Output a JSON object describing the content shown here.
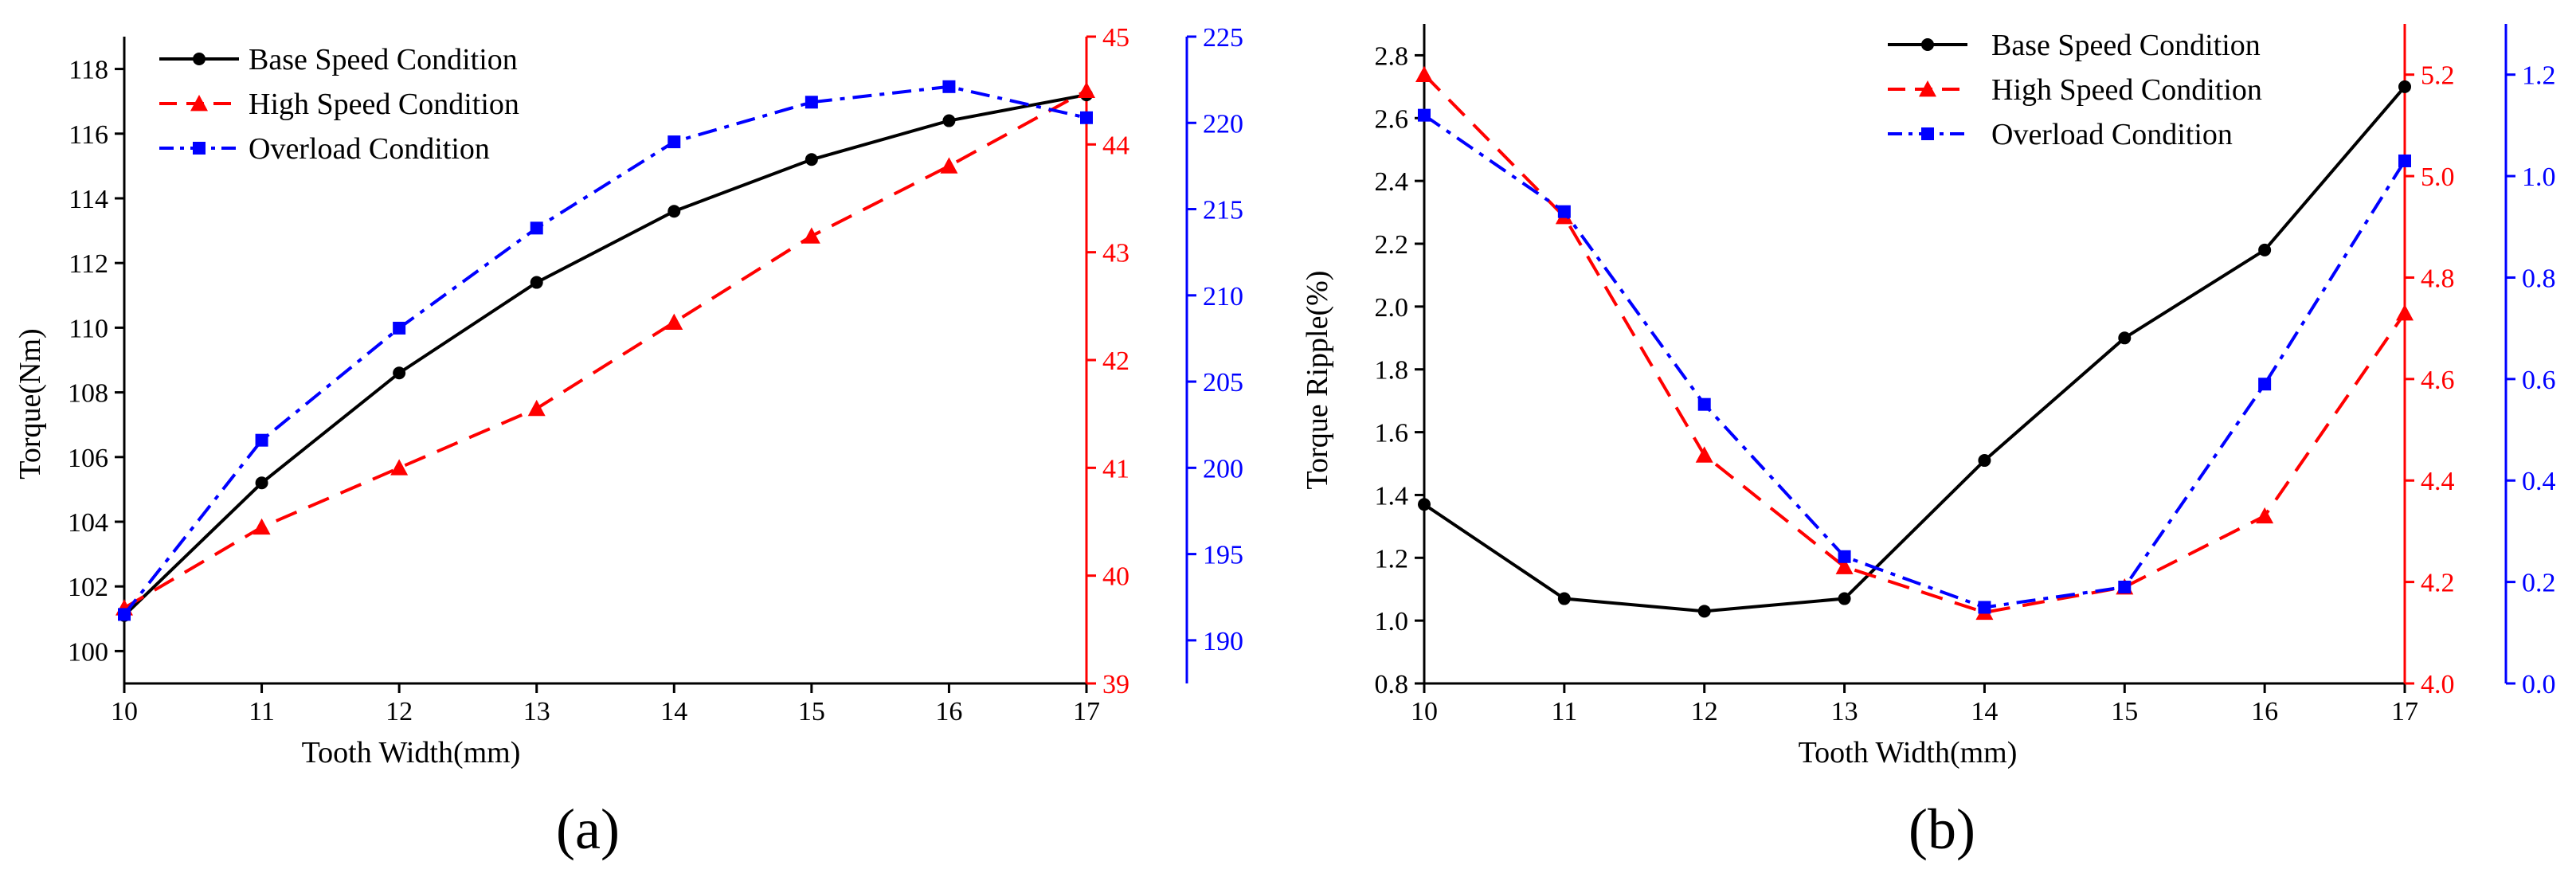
{
  "chart_data": [
    {
      "type": "line",
      "panel_label": "(a)",
      "title": "",
      "xlabel": "Tooth Width(mm)",
      "ylabel": "Torque(Nm)",
      "x": [
        10,
        11,
        12,
        13,
        14,
        15,
        16,
        17
      ],
      "xlim": [
        10,
        17
      ],
      "x_ticks": [
        "10",
        "11",
        "12",
        "13",
        "14",
        "15",
        "16",
        "17"
      ],
      "axes": [
        {
          "id": "left",
          "side": "left",
          "color": "#000000",
          "ylim": [
            99,
            119
          ],
          "ticks": [
            100,
            102,
            104,
            106,
            108,
            110,
            112,
            114,
            116,
            118
          ],
          "tick_labels": [
            "100",
            "102",
            "104",
            "106",
            "108",
            "110",
            "112",
            "114",
            "116",
            "118"
          ]
        },
        {
          "id": "right1",
          "side": "right",
          "color": "#ff0000",
          "ylim": [
            39,
            45
          ],
          "ticks": [
            39,
            40,
            41,
            42,
            43,
            44,
            45
          ],
          "tick_labels": [
            "39",
            "40",
            "41",
            "42",
            "43",
            "44",
            "45"
          ]
        },
        {
          "id": "right2",
          "side": "right",
          "color": "#0000ff",
          "ylim": [
            187.5,
            225
          ],
          "ticks": [
            190,
            195,
            200,
            205,
            210,
            215,
            220,
            225
          ],
          "tick_labels": [
            "190",
            "195",
            "200",
            "205",
            "210",
            "215",
            "220",
            "225"
          ]
        }
      ],
      "series": [
        {
          "name": "Base Speed Condition",
          "axis": "left",
          "color": "#000000",
          "dash": "solid",
          "marker": "circle",
          "values": [
            101.1,
            105.2,
            108.6,
            111.4,
            113.6,
            115.2,
            116.4,
            117.2
          ]
        },
        {
          "name": "High Speed Condition",
          "axis": "right1",
          "color": "#ff0000",
          "dash": "dash",
          "marker": "triangle",
          "values": [
            39.7,
            40.45,
            41.0,
            41.55,
            42.35,
            43.15,
            43.8,
            44.5
          ]
        },
        {
          "name": "Overload Condition",
          "axis": "right2",
          "color": "#0000ff",
          "dash": "dashdot",
          "marker": "square",
          "values": [
            191.5,
            201.6,
            208.1,
            213.9,
            218.9,
            221.2,
            222.1,
            220.3
          ]
        }
      ],
      "legend": "top-left",
      "grid": false
    },
    {
      "type": "line",
      "panel_label": "(b)",
      "title": "",
      "xlabel": "Tooth Width(mm)",
      "ylabel": "Torque Ripple(%)",
      "x": [
        10,
        11,
        12,
        13,
        14,
        15,
        16,
        17
      ],
      "xlim": [
        10,
        17
      ],
      "x_ticks": [
        "10",
        "11",
        "12",
        "13",
        "14",
        "15",
        "16",
        "17"
      ],
      "axes": [
        {
          "id": "left",
          "side": "left",
          "color": "#000000",
          "ylim": [
            0.8,
            2.9
          ],
          "ticks": [
            0.8,
            1.0,
            1.2,
            1.4,
            1.6,
            1.8,
            2.0,
            2.2,
            2.4,
            2.6,
            2.8
          ],
          "tick_labels": [
            "0.8",
            "1.0",
            "1.2",
            "1.4",
            "1.6",
            "1.8",
            "2.0",
            "2.2",
            "2.4",
            "2.6",
            "2.8"
          ]
        },
        {
          "id": "right1",
          "side": "right",
          "color": "#ff0000",
          "ylim": [
            4.0,
            5.3
          ],
          "ticks": [
            4.0,
            4.2,
            4.4,
            4.6,
            4.8,
            5.0,
            5.2
          ],
          "tick_labels": [
            "4.0",
            "4.2",
            "4.4",
            "4.6",
            "4.8",
            "5.0",
            "5.2"
          ]
        },
        {
          "id": "right2",
          "side": "right",
          "color": "#0000ff",
          "ylim": [
            0.0,
            1.3
          ],
          "ticks": [
            0.0,
            0.2,
            0.4,
            0.6,
            0.8,
            1.0,
            1.2
          ],
          "tick_labels": [
            "0.0",
            "0.2",
            "0.4",
            "0.6",
            "0.8",
            "1.0",
            "1.2"
          ]
        }
      ],
      "series": [
        {
          "name": "Base Speed Condition",
          "axis": "left",
          "color": "#000000",
          "dash": "solid",
          "marker": "circle",
          "values": [
            1.37,
            1.07,
            1.03,
            1.07,
            1.51,
            1.9,
            2.18,
            2.7
          ]
        },
        {
          "name": "High Speed Condition",
          "axis": "right1",
          "color": "#ff0000",
          "dash": "dash",
          "marker": "triangle",
          "values": [
            5.2,
            4.92,
            4.45,
            4.23,
            4.14,
            4.19,
            4.33,
            4.73
          ]
        },
        {
          "name": "Overload Condition",
          "axis": "right2",
          "color": "#0000ff",
          "dash": "dashdot",
          "marker": "square",
          "values": [
            1.12,
            0.93,
            0.55,
            0.25,
            0.15,
            0.19,
            0.59,
            1.03
          ]
        }
      ],
      "legend": "top-right",
      "grid": false
    }
  ]
}
